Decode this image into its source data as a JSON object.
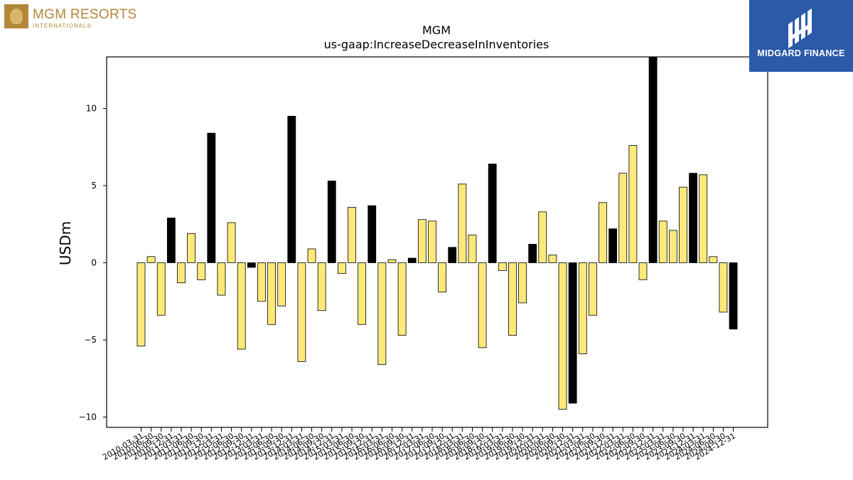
{
  "logos": {
    "left_name": "MGM RESORTS",
    "left_sub": "INTERNATIONAL®",
    "right_brand": "MIDGARD FINANCE"
  },
  "chart_data": {
    "type": "bar",
    "title": "MGM",
    "subtitle": "us-gaap:IncreaseDecreaseInInventories",
    "ylabel": "USDm",
    "xlabel": "",
    "ylim": [
      -10.6,
      13.3
    ],
    "yticks": [
      -10,
      -5,
      0,
      5,
      10
    ],
    "grid": false,
    "colors": {
      "positive_series": "#fce97a",
      "highlight": "#000000",
      "edge": "#000000"
    },
    "categories": [
      "2010-03-31",
      "2010-06-30",
      "2010-09-30",
      "2010-12-31",
      "2011-03-31",
      "2011-06-30",
      "2011-09-30",
      "2011-12-31",
      "2012-03-31",
      "2012-06-30",
      "2012-09-30",
      "2012-12-31",
      "2013-03-31",
      "2013-06-30",
      "2013-09-30",
      "2013-12-31",
      "2014-03-31",
      "2014-06-30",
      "2014-09-30",
      "2014-12-31",
      "2015-03-31",
      "2015-06-30",
      "2015-09-30",
      "2015-12-31",
      "2016-03-31",
      "2016-06-30",
      "2016-09-30",
      "2016-12-31",
      "2017-03-31",
      "2017-06-30",
      "2017-09-30",
      "2017-12-31",
      "2018-03-31",
      "2018-06-30",
      "2018-09-30",
      "2018-12-31",
      "2019-03-31",
      "2019-06-30",
      "2019-09-30",
      "2019-12-31",
      "2020-03-31",
      "2020-06-30",
      "2020-09-30",
      "2020-12-31",
      "2021-03-31",
      "2021-06-30",
      "2021-09-30",
      "2021-12-31",
      "2022-03-31",
      "2022-06-30",
      "2022-09-30",
      "2022-12-31",
      "2023-03-31",
      "2023-06-30",
      "2023-09-30",
      "2023-12-31",
      "2024-03-31",
      "2024-06-30",
      "2024-09-30",
      "2024-12-31"
    ],
    "values": [
      -5.4,
      0.4,
      -3.4,
      2.9,
      -1.3,
      1.9,
      -1.1,
      8.4,
      -2.1,
      2.6,
      -5.6,
      -0.3,
      -2.5,
      -4.0,
      -2.8,
      9.5,
      -6.4,
      0.9,
      -3.1,
      5.3,
      -0.7,
      3.6,
      -4.0,
      3.7,
      -6.6,
      0.2,
      -4.7,
      0.3,
      2.8,
      2.7,
      -1.9,
      1.0,
      5.1,
      1.8,
      -5.5,
      6.4,
      -0.5,
      -4.7,
      -2.6,
      1.2,
      3.3,
      0.5,
      -9.5,
      -9.1,
      -5.9,
      -3.4,
      3.9,
      2.2,
      5.8,
      7.6,
      -1.1,
      13.3,
      2.7,
      2.1,
      4.9,
      5.8,
      5.7,
      0.4,
      -3.2,
      -4.3
    ],
    "highlight": [
      false,
      false,
      false,
      true,
      false,
      false,
      false,
      true,
      false,
      false,
      false,
      true,
      false,
      false,
      false,
      true,
      false,
      false,
      false,
      true,
      false,
      false,
      false,
      true,
      false,
      false,
      false,
      true,
      false,
      false,
      false,
      true,
      false,
      false,
      false,
      true,
      false,
      false,
      false,
      true,
      false,
      false,
      false,
      true,
      false,
      false,
      false,
      true,
      false,
      false,
      false,
      true,
      false,
      false,
      false,
      true,
      false,
      false,
      false,
      true
    ]
  }
}
